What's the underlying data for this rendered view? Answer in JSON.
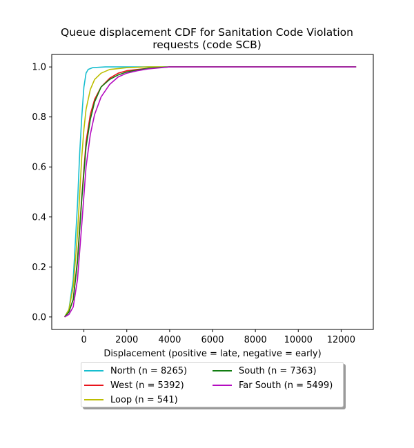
{
  "chart_data": {
    "type": "line",
    "title_lines": [
      "Queue displacement CDF for Sanitation Code Violation",
      "requests (code SCB)"
    ],
    "xlabel": "Displacement (positive = late, negative = early)",
    "ylabel": "",
    "xlim": [
      -1500,
      13500
    ],
    "ylim": [
      -0.05,
      1.05
    ],
    "xticks": [
      0,
      2000,
      4000,
      6000,
      8000,
      10000,
      12000
    ],
    "yticks": [
      0.0,
      0.2,
      0.4,
      0.6,
      0.8,
      1.0
    ],
    "xtick_labels": [
      "0",
      "2000",
      "4000",
      "6000",
      "8000",
      "10000",
      "12000"
    ],
    "ytick_labels": [
      "0.0",
      "0.2",
      "0.4",
      "0.6",
      "0.8",
      "1.0"
    ],
    "grid": false,
    "legend_placement": "below",
    "series": [
      {
        "name": "North (n = 8265)",
        "color": "#17becf",
        "x": [
          -900,
          -700,
          -500,
          -300,
          -200,
          -100,
          0,
          100,
          200,
          400,
          1000,
          2000,
          12700
        ],
        "y": [
          0.0,
          0.03,
          0.15,
          0.45,
          0.65,
          0.8,
          0.92,
          0.975,
          0.99,
          0.997,
          1.0,
          1.0,
          1.0
        ]
      },
      {
        "name": "West (n = 5392)",
        "color": "#e8141c",
        "x": [
          -900,
          -700,
          -500,
          -300,
          -100,
          100,
          300,
          500,
          800,
          1200,
          1600,
          2000,
          2500,
          3000,
          4000,
          12700
        ],
        "y": [
          0.0,
          0.02,
          0.07,
          0.23,
          0.48,
          0.7,
          0.81,
          0.87,
          0.92,
          0.955,
          0.975,
          0.985,
          0.99,
          0.995,
          1.0,
          1.0
        ]
      },
      {
        "name": "Loop (n = 541)",
        "color": "#bcbd00",
        "x": [
          -900,
          -700,
          -500,
          -300,
          -100,
          0,
          100,
          300,
          500,
          800,
          1200,
          2000,
          3000,
          12700
        ],
        "y": [
          0.0,
          0.03,
          0.12,
          0.33,
          0.64,
          0.75,
          0.83,
          0.91,
          0.95,
          0.975,
          0.99,
          0.997,
          1.0,
          1.0
        ]
      },
      {
        "name": "South (n = 7363)",
        "color": "#117d11",
        "x": [
          -900,
          -700,
          -500,
          -300,
          -100,
          100,
          300,
          500,
          800,
          1200,
          1600,
          2000,
          2500,
          3000,
          4000,
          12700
        ],
        "y": [
          0.0,
          0.02,
          0.07,
          0.22,
          0.47,
          0.68,
          0.79,
          0.86,
          0.92,
          0.95,
          0.968,
          0.98,
          0.988,
          0.995,
          1.0,
          1.0
        ]
      },
      {
        "name": "Far South (n = 5499)",
        "color": "#b40cc0",
        "x": [
          -900,
          -700,
          -500,
          -300,
          -100,
          100,
          300,
          500,
          800,
          1200,
          1600,
          2000,
          2500,
          3000,
          4000,
          12700
        ],
        "y": [
          0.0,
          0.01,
          0.04,
          0.15,
          0.37,
          0.6,
          0.73,
          0.81,
          0.88,
          0.93,
          0.96,
          0.975,
          0.985,
          0.992,
          1.0,
          1.0
        ]
      }
    ]
  }
}
